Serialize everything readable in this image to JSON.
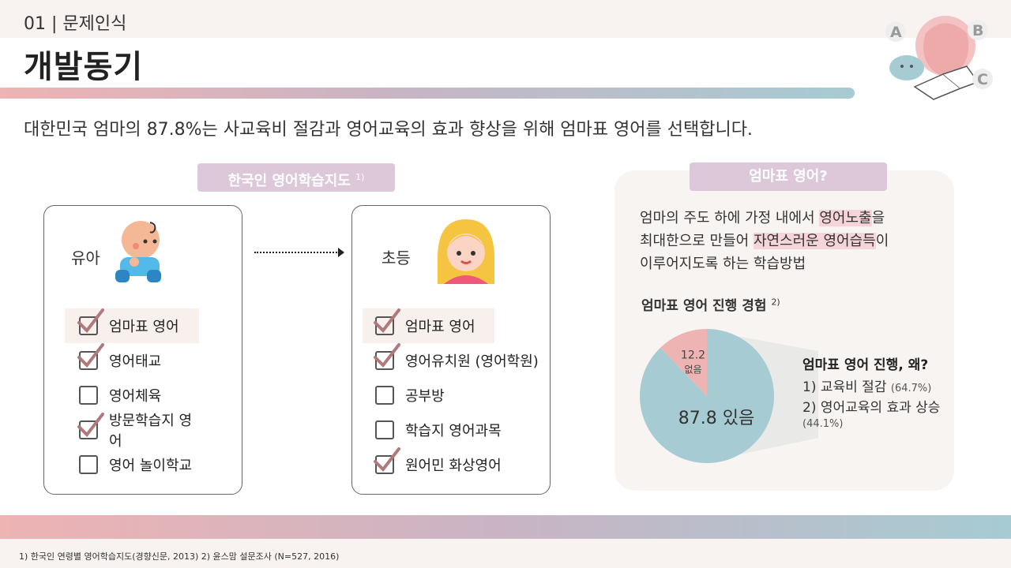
{
  "header": {
    "section": "01 | 문제인식",
    "title": "개발동기"
  },
  "lead": "대한민국 엄마의 87.8%는 사교육비 절감과 영어교육의 효과 향상을 위해 엄마표 영어를 선택합니다.",
  "guide": {
    "pill_label": "한국인 영어학습지도",
    "pill_note": "1)",
    "infant": {
      "label": "유아",
      "items": [
        {
          "label": "엄마표 영어",
          "checked": true,
          "highlighted": true
        },
        {
          "label": "영어태교",
          "checked": true,
          "highlighted": false
        },
        {
          "label": "영어체육",
          "checked": false,
          "highlighted": false
        },
        {
          "label": "방문학습지 영어",
          "checked": true,
          "highlighted": false
        },
        {
          "label": "영어 놀이학교",
          "checked": false,
          "highlighted": false
        }
      ]
    },
    "elementary": {
      "label": "초등",
      "items": [
        {
          "label": "엄마표 영어",
          "checked": true,
          "highlighted": true
        },
        {
          "label": "영어유치원 (영어학원)",
          "checked": true,
          "highlighted": false
        },
        {
          "label": "공부방",
          "checked": false,
          "highlighted": false
        },
        {
          "label": "학습지 영어과목",
          "checked": false,
          "highlighted": false
        },
        {
          "label": "원어민 화상영어",
          "checked": true,
          "highlighted": false
        }
      ]
    }
  },
  "about": {
    "pill_label": "엄마표 영어?",
    "line1_a": "엄마의 주도 하에 가정 내에서 ",
    "line1_mark": "영어노출",
    "line1_b": "을",
    "line2_a": "최대한으로 만들어 ",
    "line2_mark": "자연스러운 영어습득",
    "line2_b": "이",
    "line3": "이루어지도록 하는 학습방법",
    "experience_title": "엄마표 영어 진행 경험",
    "experience_note": "2)",
    "pie": {
      "slices": [
        {
          "value": 87.8,
          "label": "87.8 있음",
          "color": "#a6cbd3"
        },
        {
          "value": 12.2,
          "value_label": "12.2",
          "label": "없음",
          "color": "#eeb3b3"
        }
      ]
    },
    "reasons_title": "엄마표 영어 진행, 왜?",
    "reason1": "1) 교육비 절감",
    "reason1_pct": "(64.7%)",
    "reason2": "2) 영어교육의 효과 상승",
    "reason2_pct": "(44.1%)"
  },
  "footnote": "1) 한국인 연령별 영어학습지도(경향신문, 2013)   2) 윤스맘 설문조사 (N=527, 2016)",
  "colors": {
    "pink": "#eeb3b3",
    "teal": "#a6cbd3",
    "lilac": "#dcc8d8",
    "check": "#b0797c"
  }
}
